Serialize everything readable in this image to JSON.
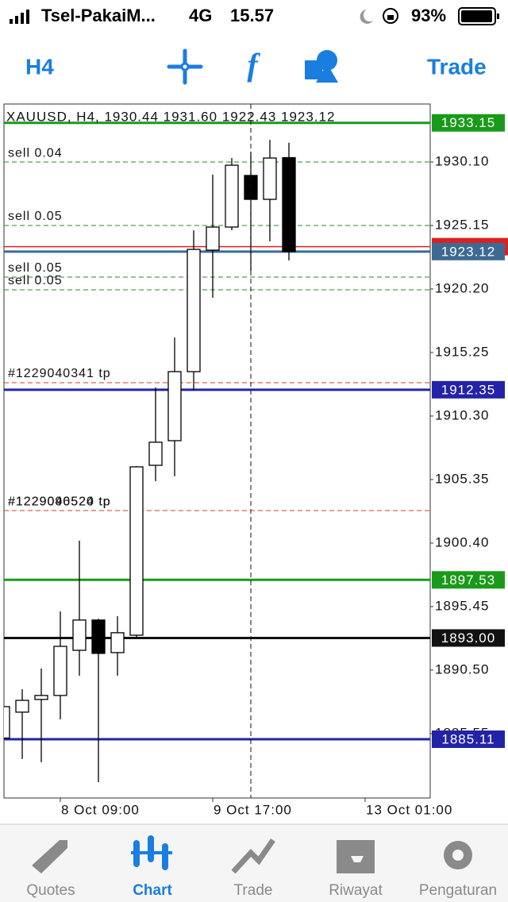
{
  "status_bar": {
    "carrier": "Tsel-PakaiM...",
    "network": "4G",
    "time": "15.57",
    "battery": "93%"
  },
  "toolbar": {
    "timeframe": "H4",
    "trade": "Trade"
  },
  "chart": {
    "type": "candlestick",
    "title": "XAUUSD, H4, 1930.44 1931.60 1922.43 1923.12",
    "ylim": [
      1880.53,
      1934.62
    ],
    "yticks": [
      {
        "value": 1930.1,
        "label": "1930.10"
      },
      {
        "value": 1925.15,
        "label": "1925.15"
      },
      {
        "value": 1920.2,
        "label": "1920.20"
      },
      {
        "value": 1915.25,
        "label": "1915.25"
      },
      {
        "value": 1910.3,
        "label": "1910.30"
      },
      {
        "value": 1905.35,
        "label": "1905.35"
      },
      {
        "value": 1900.4,
        "label": "1900.40"
      },
      {
        "value": 1895.45,
        "label": "1895.45"
      },
      {
        "value": 1890.5,
        "label": "1890.50"
      },
      {
        "value": 1885.55,
        "label": "1885.55"
      }
    ],
    "categories": [
      null,
      null,
      null,
      "8 Oct 09:00",
      null,
      null,
      null,
      null,
      null,
      null,
      null,
      "9 Oct 17:00",
      null,
      null,
      null,
      null,
      null,
      null,
      null,
      "13 Oct 01:00"
    ],
    "candles": {
      "open": [
        1885.2,
        1887.22,
        1888.21,
        1888.52,
        1892.04,
        1894.4,
        1891.86,
        1893.22,
        1906.46,
        1908.38,
        1913.76,
        1923.23,
        1925.03,
        1929.05,
        1927.19,
        1930.44,
        null,
        null,
        null,
        null
      ],
      "high": [
        1888,
        1889.01,
        1890.62,
        1895.07,
        1900.58,
        1894.5,
        1894.7,
        1906.4,
        1912.53,
        1916.42,
        1924.78,
        1929.11,
        1930.41,
        1930.9,
        1931.83,
        1931.6,
        null,
        null,
        null,
        null
      ],
      "low": [
        1885,
        1883.57,
        1883.32,
        1886.66,
        1890.06,
        1881.77,
        1890.06,
        1892.91,
        1905.22,
        1905.6,
        1912.28,
        1919.52,
        1924.78,
        1921.62,
        1923.91,
        1922.43,
        null,
        null,
        null,
        null
      ],
      "close": [
        1887.65,
        1888.14,
        1888.52,
        1892.35,
        1894.4,
        1891.8,
        1893.41,
        1906.34,
        1908.26,
        1913.76,
        1923.29,
        1925.03,
        1929.85,
        1927.19,
        1930.41,
        1923.12,
        null,
        null,
        null,
        null
      ]
    },
    "levels": [
      {
        "value": 1933.15,
        "label": "1933.15",
        "color": "#1a9a1a"
      },
      {
        "value": 1923.5,
        "color": "#e02020"
      },
      {
        "value": 1923.12,
        "label": "1923.12",
        "color": "#3d6a92"
      },
      {
        "value": 1912.35,
        "label": "1912.35",
        "color": "#2323a8"
      },
      {
        "value": 1897.53,
        "label": "1897.53",
        "color": "#1a9a1a"
      },
      {
        "value": 1893.0,
        "label": "1893.00",
        "color": "#111111"
      },
      {
        "value": 1885.11,
        "label": "1885.11",
        "color": "#2323a8"
      }
    ],
    "orders": [
      {
        "value": 1930.1,
        "label": "sell 0.04",
        "color": "#2a8a2a"
      },
      {
        "value": 1925.15,
        "label": "sell 0.05",
        "color": "#2a8a2a"
      },
      {
        "value": 1921.13,
        "label": "sell 0.05",
        "color": "#2a8a2a"
      },
      {
        "value": 1920.14,
        "label": "sell 0.05",
        "color": "#2a8a2a"
      },
      {
        "value": 1912.9,
        "label": "#1229040341 tp",
        "color": "#d04020"
      },
      {
        "value": 1902.93,
        "label": "#1229096524 tp",
        "color": "#d04020"
      },
      {
        "value": 1902.93,
        "label": "#1229040520 tp",
        "color": "#d04020"
      }
    ]
  },
  "tab_bar": {
    "items": [
      "Quotes",
      "Chart",
      "Trade",
      "Riwayat",
      "Pengaturan"
    ],
    "active": 1
  }
}
